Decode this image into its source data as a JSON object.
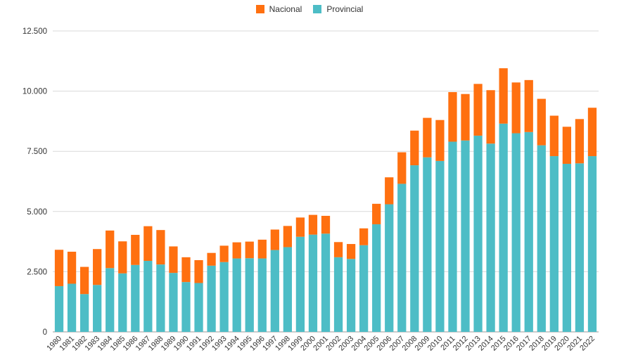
{
  "chart_data": {
    "type": "bar",
    "stacked": true,
    "title": "",
    "xlabel": "",
    "ylabel": "",
    "ylim": [
      0,
      12500
    ],
    "y_ticks": [
      "0",
      "2.500",
      "5.000",
      "7.500",
      "10.000",
      "12.500"
    ],
    "y_tick_values": [
      0,
      2500,
      5000,
      7500,
      10000,
      12500
    ],
    "grid": true,
    "legend_position": "top-center",
    "categories": [
      "1980",
      "1981",
      "1982",
      "1983",
      "1984",
      "1985",
      "1986",
      "1987",
      "1988",
      "1989",
      "1990",
      "1991",
      "1992",
      "1993",
      "1994",
      "1995",
      "1996",
      "1997",
      "1998",
      "1999",
      "2000",
      "2001",
      "2002",
      "2003",
      "2004",
      "2005",
      "2006",
      "2007",
      "2008",
      "2009",
      "2010",
      "2011",
      "2012",
      "2013",
      "2014",
      "2015",
      "2016",
      "2017",
      "2018",
      "2019",
      "2020",
      "2021",
      "2022"
    ],
    "series": [
      {
        "name": "Provincial",
        "color": "#4dbdc6",
        "values": [
          1900,
          2000,
          1570,
          1950,
          2650,
          2430,
          2780,
          2950,
          2800,
          2450,
          2070,
          2030,
          2750,
          2900,
          3050,
          3060,
          3050,
          3400,
          3520,
          3950,
          4040,
          4080,
          3100,
          3030,
          3600,
          4470,
          5300,
          6150,
          6920,
          7250,
          7100,
          7900,
          7950,
          8150,
          7820,
          8650,
          8250,
          8300,
          7750,
          7300,
          6980,
          7000,
          7300
        ]
      },
      {
        "name": "Nacional",
        "color": "#ff7010",
        "values": [
          1510,
          1330,
          1130,
          1490,
          1560,
          1330,
          1250,
          1440,
          1430,
          1100,
          1030,
          950,
          530,
          680,
          670,
          690,
          780,
          850,
          880,
          800,
          820,
          740,
          630,
          620,
          700,
          850,
          1120,
          1310,
          1440,
          1640,
          1700,
          2060,
          1930,
          2150,
          2220,
          2300,
          2110,
          2160,
          1930,
          1680,
          1540,
          1840,
          2010
        ]
      }
    ]
  }
}
